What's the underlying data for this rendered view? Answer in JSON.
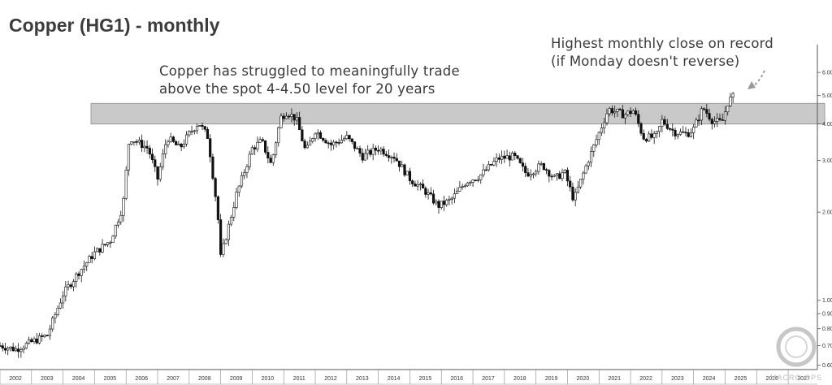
{
  "page": {
    "title": "Copper (HG1) - monthly"
  },
  "logo": {
    "text": "MACRO OPS"
  },
  "chart_data": {
    "type": "candlestick",
    "title": "Copper (HG1) - monthly",
    "scale": "log",
    "xlim": [
      2002,
      2027.9
    ],
    "ylim": [
      0.58,
      7.0
    ],
    "x_tick_labels": [
      "2002",
      "2003",
      "2004",
      "2005",
      "2006",
      "2007",
      "2008",
      "2009",
      "2010",
      "2011",
      "2012",
      "2013",
      "2014",
      "2015",
      "2016",
      "2017",
      "2018",
      "2019",
      "2020",
      "2021",
      "2022",
      "2023",
      "2024",
      "2025",
      "2026",
      "2027"
    ],
    "y_tick_labels": [
      "0.60",
      "0.70",
      "0.80",
      "0.90",
      "1.00",
      "2.00",
      "3.00",
      "4.00",
      "5.00",
      "6.00"
    ],
    "y_tick_values": [
      0.6,
      0.7,
      0.8,
      0.9,
      1.0,
      2.0,
      3.0,
      4.0,
      5.0,
      6.0
    ],
    "resistance_band": [
      4.0,
      4.7
    ],
    "annotations": [
      {
        "text": "Copper has struggled to meaningfully trade\nabove the spot 4-4.50 level for 20 years"
      },
      {
        "text": "Highest monthly close on record\n(if Monday doesn't reverse)"
      }
    ],
    "monthly_closes": [
      {
        "x": 2002.0,
        "y": 0.7
      },
      {
        "x": 2002.5,
        "y": 0.68
      },
      {
        "x": 2003.0,
        "y": 0.72
      },
      {
        "x": 2003.5,
        "y": 0.76
      },
      {
        "x": 2004.0,
        "y": 1.05
      },
      {
        "x": 2004.5,
        "y": 1.25
      },
      {
        "x": 2005.0,
        "y": 1.45
      },
      {
        "x": 2005.5,
        "y": 1.6
      },
      {
        "x": 2005.9,
        "y": 2.1
      },
      {
        "x": 2006.1,
        "y": 3.6
      },
      {
        "x": 2006.7,
        "y": 3.3
      },
      {
        "x": 2007.0,
        "y": 2.6
      },
      {
        "x": 2007.3,
        "y": 3.6
      },
      {
        "x": 2007.7,
        "y": 3.3
      },
      {
        "x": 2008.0,
        "y": 3.7
      },
      {
        "x": 2008.3,
        "y": 4.05
      },
      {
        "x": 2008.6,
        "y": 3.6
      },
      {
        "x": 2008.9,
        "y": 2.0
      },
      {
        "x": 2009.0,
        "y": 1.4
      },
      {
        "x": 2009.5,
        "y": 2.3
      },
      {
        "x": 2010.0,
        "y": 3.3
      },
      {
        "x": 2010.3,
        "y": 3.5
      },
      {
        "x": 2010.6,
        "y": 2.9
      },
      {
        "x": 2010.9,
        "y": 4.2
      },
      {
        "x": 2011.1,
        "y": 4.4
      },
      {
        "x": 2011.4,
        "y": 4.15
      },
      {
        "x": 2011.7,
        "y": 3.2
      },
      {
        "x": 2012.0,
        "y": 3.8
      },
      {
        "x": 2012.5,
        "y": 3.4
      },
      {
        "x": 2013.0,
        "y": 3.6
      },
      {
        "x": 2013.5,
        "y": 3.1
      },
      {
        "x": 2014.0,
        "y": 3.3
      },
      {
        "x": 2014.5,
        "y": 3.1
      },
      {
        "x": 2015.0,
        "y": 2.6
      },
      {
        "x": 2015.5,
        "y": 2.35
      },
      {
        "x": 2015.9,
        "y": 2.1
      },
      {
        "x": 2016.3,
        "y": 2.2
      },
      {
        "x": 2016.8,
        "y": 2.55
      },
      {
        "x": 2017.2,
        "y": 2.65
      },
      {
        "x": 2017.8,
        "y": 3.05
      },
      {
        "x": 2018.3,
        "y": 3.1
      },
      {
        "x": 2018.7,
        "y": 2.7
      },
      {
        "x": 2019.2,
        "y": 2.9
      },
      {
        "x": 2019.6,
        "y": 2.6
      },
      {
        "x": 2019.9,
        "y": 2.75
      },
      {
        "x": 2020.2,
        "y": 2.2
      },
      {
        "x": 2020.6,
        "y": 2.9
      },
      {
        "x": 2020.9,
        "y": 3.5
      },
      {
        "x": 2021.3,
        "y": 4.5
      },
      {
        "x": 2021.8,
        "y": 4.3
      },
      {
        "x": 2022.1,
        "y": 4.45
      },
      {
        "x": 2022.4,
        "y": 3.6
      },
      {
        "x": 2022.8,
        "y": 3.6
      },
      {
        "x": 2023.0,
        "y": 4.1
      },
      {
        "x": 2023.4,
        "y": 3.75
      },
      {
        "x": 2023.8,
        "y": 3.7
      },
      {
        "x": 2024.0,
        "y": 3.85
      },
      {
        "x": 2024.3,
        "y": 4.55
      },
      {
        "x": 2024.6,
        "y": 4.1
      },
      {
        "x": 2024.9,
        "y": 4.05
      },
      {
        "x": 2025.1,
        "y": 4.8
      },
      {
        "x": 2025.3,
        "y": 5.0
      }
    ]
  }
}
